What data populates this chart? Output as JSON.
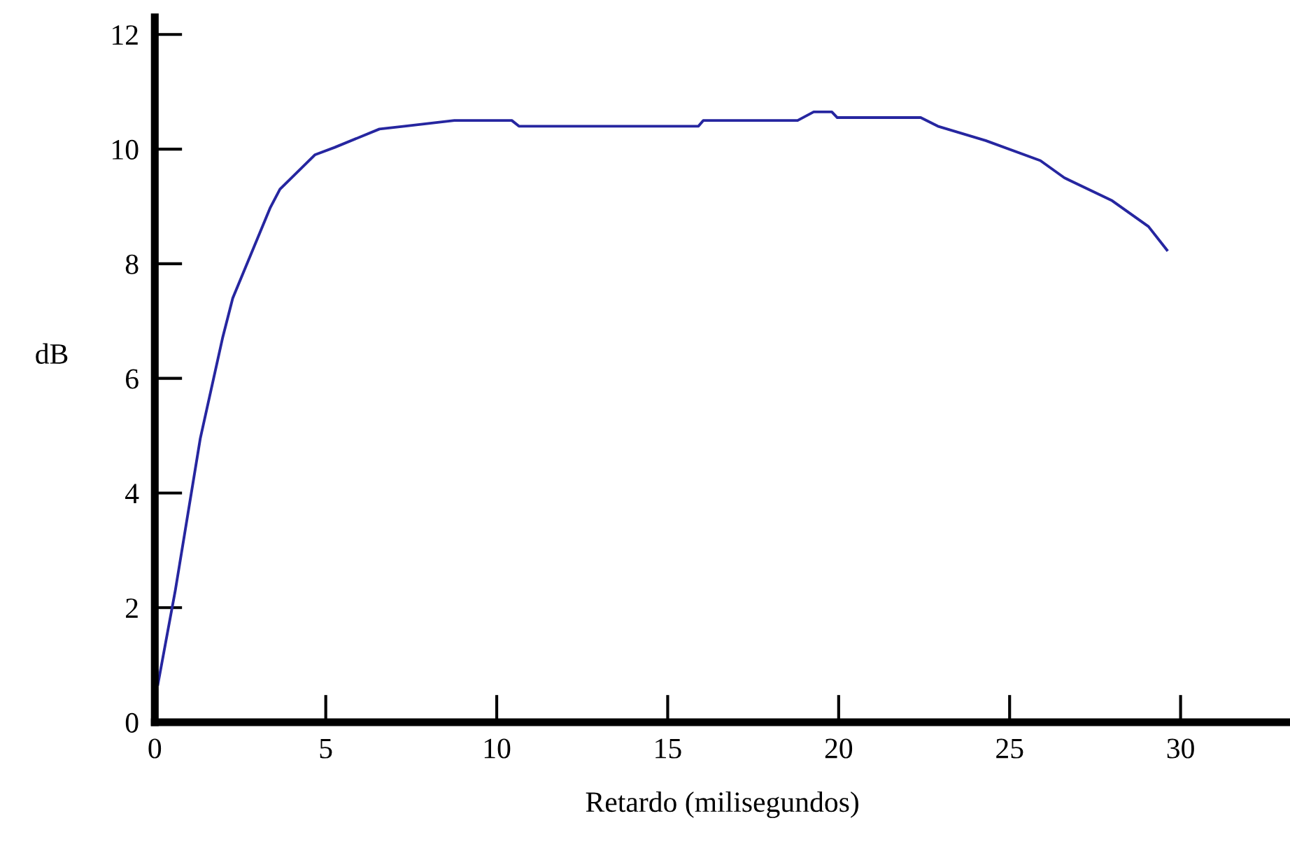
{
  "chart_data": {
    "type": "line",
    "xlabel": "Retardo (milisegundos)",
    "ylabel": "dB",
    "series": [
      {
        "color": "#2626a0",
        "x": [
          0.09,
          0.6,
          1.33,
          1.98,
          2.28,
          3.37,
          3.66,
          4.68,
          5.26,
          6.57,
          7.3,
          8.76,
          10.44,
          10.65,
          15.9,
          16.04,
          18.8,
          19.27,
          19.8,
          19.96,
          22.4,
          22.9,
          24.3,
          25.9,
          26.6,
          28.0,
          29.06,
          29.6
        ],
        "values": [
          0.66,
          2.3,
          4.95,
          6.7,
          7.4,
          8.97,
          9.3,
          9.9,
          10.03,
          10.35,
          10.4,
          10.5,
          10.5,
          10.4,
          10.4,
          10.5,
          10.5,
          10.65,
          10.65,
          10.55,
          10.55,
          10.4,
          10.15,
          9.8,
          9.5,
          9.1,
          8.65,
          8.24
        ]
      }
    ],
    "xlim": [
      0,
      33.2
    ],
    "ylim": [
      0,
      12.3
    ],
    "xticks": [
      0,
      5,
      10,
      15,
      20,
      25,
      30
    ],
    "yticks": [
      0,
      2,
      4,
      6,
      8,
      10,
      12
    ],
    "grid": false,
    "legend": false,
    "marker": "none",
    "line_style": "solid"
  }
}
